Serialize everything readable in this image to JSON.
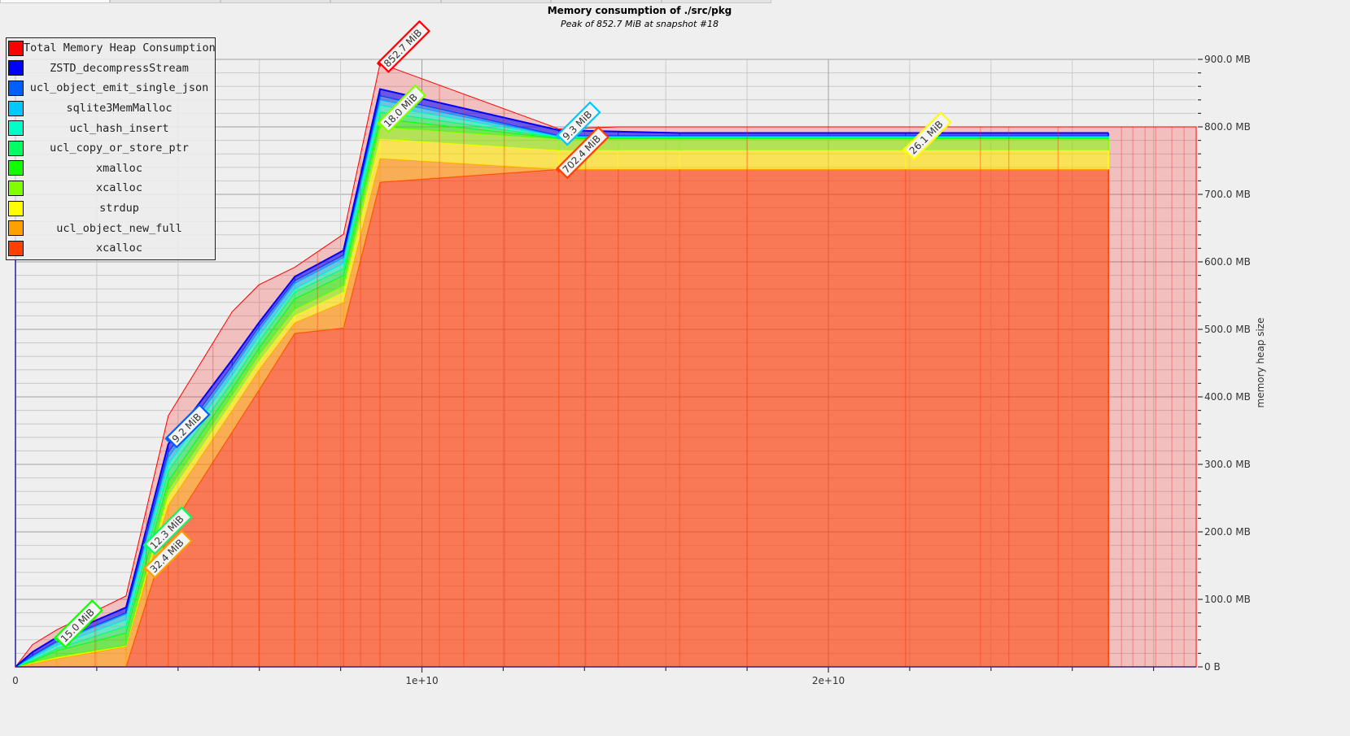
{
  "chart_data": {
    "type": "area",
    "stacked": true,
    "title": "Memory consumption of ./src/pkg",
    "subtitle": "Peak of 852.7 MiB at snapshot #18",
    "xlabel": "",
    "ylabel": "memory heap size",
    "xlim": [
      0,
      29050000000
    ],
    "ylim": [
      0,
      900
    ],
    "x_ticks": [
      {
        "value": 0,
        "label": "0"
      },
      {
        "value": 10000000000,
        "label": "1e+10"
      },
      {
        "value": 20000000000,
        "label": "2e+10"
      }
    ],
    "y_ticks": [
      {
        "value": 0,
        "label": "0 B"
      },
      {
        "value": 100,
        "label": "100.0 MB"
      },
      {
        "value": 200,
        "label": "200.0 MB"
      },
      {
        "value": 300,
        "label": "300.0 MB"
      },
      {
        "value": 400,
        "label": "400.0 MB"
      },
      {
        "value": 500,
        "label": "500.0 MB"
      },
      {
        "value": 600,
        "label": "600.0 MB"
      },
      {
        "value": 700,
        "label": "700.0 MB"
      },
      {
        "value": 800,
        "label": "800.0 MB"
      },
      {
        "value": 900,
        "label": "900.0 MB"
      }
    ],
    "y_axis_position": "right",
    "grid": true,
    "legend_position": "top-left",
    "x": [
      0,
      420000000,
      1020000000,
      2720000000,
      3760000000,
      5330000000,
      5990000000,
      6870000000,
      8070000000,
      8970000000,
      13370000000,
      14830000000,
      16340000000,
      21900000000,
      26890000000
    ],
    "total": {
      "name": "Total Memory Heap Consumption",
      "color": "#ff0000",
      "x": [
        0,
        420000000,
        1020000000,
        2720000000,
        3760000000,
        5330000000,
        5990000000,
        6870000000,
        8070000000,
        8970000000,
        13370000000,
        14830000000,
        16340000000,
        21900000000,
        26890000000,
        29050000000
      ],
      "values": [
        0,
        33,
        55,
        105,
        372,
        526,
        566,
        592,
        641,
        894,
        797,
        800,
        800,
        800,
        800,
        800
      ]
    },
    "series": [
      {
        "name": "xcalloc",
        "color": "#ff4000",
        "values": [
          0,
          0,
          0,
          0,
          200,
          348,
          410,
          494,
          502,
          718,
          737,
          737,
          737,
          737,
          737
        ]
      },
      {
        "name": "ucl_object_new_full",
        "color": "#ffa000",
        "values": [
          0,
          5,
          12,
          30,
          40,
          32,
          30,
          16,
          38,
          35,
          0,
          0,
          0,
          0,
          0
        ]
      },
      {
        "name": "strdup",
        "color": "#ffff00",
        "values": [
          0,
          1,
          2,
          1,
          12,
          12,
          12,
          10,
          15,
          29,
          28,
          28,
          28,
          28,
          28
        ]
      },
      {
        "name": "xcalloc",
        "color": "#80ff00",
        "values": [
          0,
          1,
          1,
          1,
          10,
          10,
          10,
          10,
          10,
          18,
          17,
          17,
          17,
          17,
          17
        ]
      },
      {
        "name": "xmalloc",
        "color": "#10ff00",
        "values": [
          0,
          1,
          9,
          18,
          13,
          10,
          10,
          15,
          15,
          12,
          1,
          1,
          1,
          1,
          1
        ]
      },
      {
        "name": "ucl_copy_or_store_ptr",
        "color": "#00ff60",
        "values": [
          0,
          2,
          3,
          10,
          15,
          10,
          10,
          10,
          10,
          10,
          1,
          1,
          1,
          1,
          1
        ]
      },
      {
        "name": "ucl_hash_insert",
        "color": "#00ffc8",
        "values": [
          0,
          3,
          5,
          10,
          10,
          10,
          8,
          5,
          8,
          10,
          1,
          1,
          1,
          1,
          1
        ]
      },
      {
        "name": "sqlite3MemMalloc",
        "color": "#00c8ff",
        "values": [
          0,
          2,
          4,
          8,
          10,
          8,
          8,
          8,
          8,
          8,
          1,
          1,
          1,
          1,
          1
        ]
      },
      {
        "name": "ucl_object_emit_single_json",
        "color": "#0060ff",
        "values": [
          0,
          2,
          2,
          2,
          8,
          6,
          6,
          4,
          4,
          6,
          1,
          1,
          1,
          1,
          1
        ]
      },
      {
        "name": "ZSTD_decompressStream",
        "color": "#0000ff",
        "values": [
          0,
          5,
          6,
          8,
          12,
          9,
          6,
          6,
          7,
          10,
          8,
          6,
          4,
          4,
          4
        ]
      }
    ],
    "snapshot_marks": [
      1960000000,
      3220000000,
      4860000000,
      7430000000,
      8490000000,
      10430000000,
      11030000000,
      12030000000,
      14030000000,
      18000000000,
      23740000000,
      24440000000,
      25650000000,
      27210000000,
      27490000000,
      27790000000,
      28050000000,
      28450000000,
      28750000000
    ],
    "annotations": [
      {
        "text": "852.7 MiB",
        "color": "#ff0000",
        "x": 8970000000,
        "y": 894
      },
      {
        "text": "18.0 MiB",
        "color": "#80ff00",
        "x": 8970000000,
        "y": 805
      },
      {
        "text": "9.3 MiB",
        "color": "#00c8ff",
        "x": 13370000000,
        "y": 786
      },
      {
        "text": "702.4 MiB",
        "color": "#ff4000",
        "x": 13370000000,
        "y": 737
      },
      {
        "text": "26.1 MiB",
        "color": "#ffff00",
        "x": 21900000000,
        "y": 765
      },
      {
        "text": "9.2 MiB",
        "color": "#0060ff",
        "x": 3760000000,
        "y": 338
      },
      {
        "text": "12.3 MiB",
        "color": "#00ff60",
        "x": 3220000000,
        "y": 180
      },
      {
        "text": "32.4 MiB",
        "color": "#ffa000",
        "x": 3220000000,
        "y": 145
      },
      {
        "text": "15.0 MiB",
        "color": "#10ff00",
        "x": 1020000000,
        "y": 42
      }
    ]
  },
  "legend": [
    {
      "label": "Total Memory Heap Consumption",
      "color": "#ff0000"
    },
    {
      "label": "ZSTD_decompressStream",
      "color": "#0000ff"
    },
    {
      "label": "ucl_object_emit_single_json",
      "color": "#0060ff"
    },
    {
      "label": "sqlite3MemMalloc",
      "color": "#00c8ff"
    },
    {
      "label": "ucl_hash_insert",
      "color": "#00ffc8"
    },
    {
      "label": "ucl_copy_or_store_ptr",
      "color": "#00ff60"
    },
    {
      "label": "xmalloc",
      "color": "#10ff00"
    },
    {
      "label": "xcalloc",
      "color": "#80ff00"
    },
    {
      "label": "strdup",
      "color": "#ffff00"
    },
    {
      "label": "ucl_object_new_full",
      "color": "#ffa000"
    },
    {
      "label": "xcalloc",
      "color": "#ff4000"
    }
  ]
}
